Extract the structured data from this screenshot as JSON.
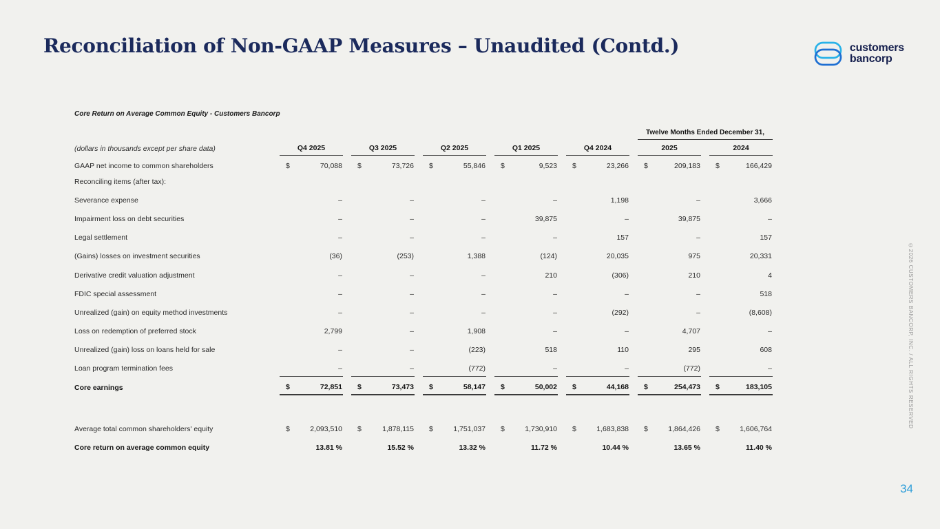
{
  "slide": {
    "title": "Reconciliation of Non-GAAP Measures – Unaudited (Contd.)",
    "page_number": "34",
    "copyright": "©2026 CUSTOMERS BANCORP, INC. / ALL RIGHTS RESERVED"
  },
  "logo": {
    "name": "customers-bancorp-logo",
    "line1": "customers",
    "line2": "bancorp"
  },
  "colors": {
    "background": "#f1f1ee",
    "title_navy": "#1b2a5c",
    "logo_navy": "#16204e",
    "logo_light_blue": "#29b2e8",
    "logo_blue": "#1e6fd2",
    "page_number_blue": "#2e9ed9",
    "table_text": "#2b2b2b"
  },
  "table": {
    "title": "Core Return on Average Common Equity  - Customers Bancorp",
    "units_note": "(dollars in thousands except per share data)",
    "group_header": "Twelve Months Ended December 31,",
    "currency_symbol": "$",
    "columns": [
      "Q4 2025",
      "Q3 2025",
      "Q2 2025",
      "Q1 2025",
      "Q4 2024",
      "2025",
      "2024"
    ],
    "rows": [
      {
        "label": "GAAP net income to common shareholders",
        "dollar": true,
        "values": [
          "70,088",
          "73,726",
          "55,846",
          "9,523",
          "23,266",
          "209,183",
          "166,429"
        ]
      },
      {
        "label": "Reconciling items (after tax):",
        "values": []
      },
      {
        "label": "Severance expense",
        "values": [
          "–",
          "–",
          "–",
          "–",
          "1,198",
          "–",
          "3,666"
        ]
      },
      {
        "label": "Impairment loss on debt securities",
        "values": [
          "–",
          "–",
          "–",
          "39,875",
          "–",
          "39,875",
          "–"
        ]
      },
      {
        "label": "Legal settlement",
        "values": [
          "–",
          "–",
          "–",
          "–",
          "157",
          "–",
          "157"
        ]
      },
      {
        "label": "(Gains) losses on investment securities",
        "values": [
          "(36)",
          "(253)",
          "1,388",
          "(124)",
          "20,035",
          "975",
          "20,331"
        ]
      },
      {
        "label": "Derivative credit valuation adjustment",
        "values": [
          "–",
          "–",
          "–",
          "210",
          "(306)",
          "210",
          "4"
        ]
      },
      {
        "label": "FDIC special assessment",
        "values": [
          "–",
          "–",
          "–",
          "–",
          "–",
          "–",
          "518"
        ]
      },
      {
        "label": "Unrealized (gain) on equity method investments",
        "values": [
          "–",
          "–",
          "–",
          "–",
          "(292)",
          "–",
          "(8,608)"
        ]
      },
      {
        "label": "Loss on redemption of preferred stock",
        "values": [
          "2,799",
          "–",
          "1,908",
          "–",
          "–",
          "4,707",
          "–"
        ]
      },
      {
        "label": "Unrealized (gain) loss on loans held for sale",
        "values": [
          "–",
          "–",
          "(223)",
          "518",
          "110",
          "295",
          "608"
        ]
      },
      {
        "label": "Loan program termination fees",
        "rule": "below",
        "values": [
          "–",
          "–",
          "(772)",
          "–",
          "–",
          "(772)",
          "–"
        ]
      },
      {
        "label": "Core earnings",
        "bold": true,
        "dollar": true,
        "rule": "total",
        "values": [
          "72,851",
          "73,473",
          "58,147",
          "50,002",
          "44,168",
          "254,473",
          "183,105"
        ]
      },
      {
        "spacer": true
      },
      {
        "label": "Average total common shareholders' equity",
        "dollar": true,
        "values": [
          "2,093,510",
          "1,878,115",
          "1,751,037",
          "1,730,910",
          "1,683,838",
          "1,864,426",
          "1,606,764"
        ]
      },
      {
        "label": "Core return on average common equity",
        "bold": true,
        "values": [
          "13.81 %",
          "15.52 %",
          "13.32 %",
          "11.72 %",
          "10.44 %",
          "13.65 %",
          "11.40 %"
        ]
      }
    ]
  }
}
